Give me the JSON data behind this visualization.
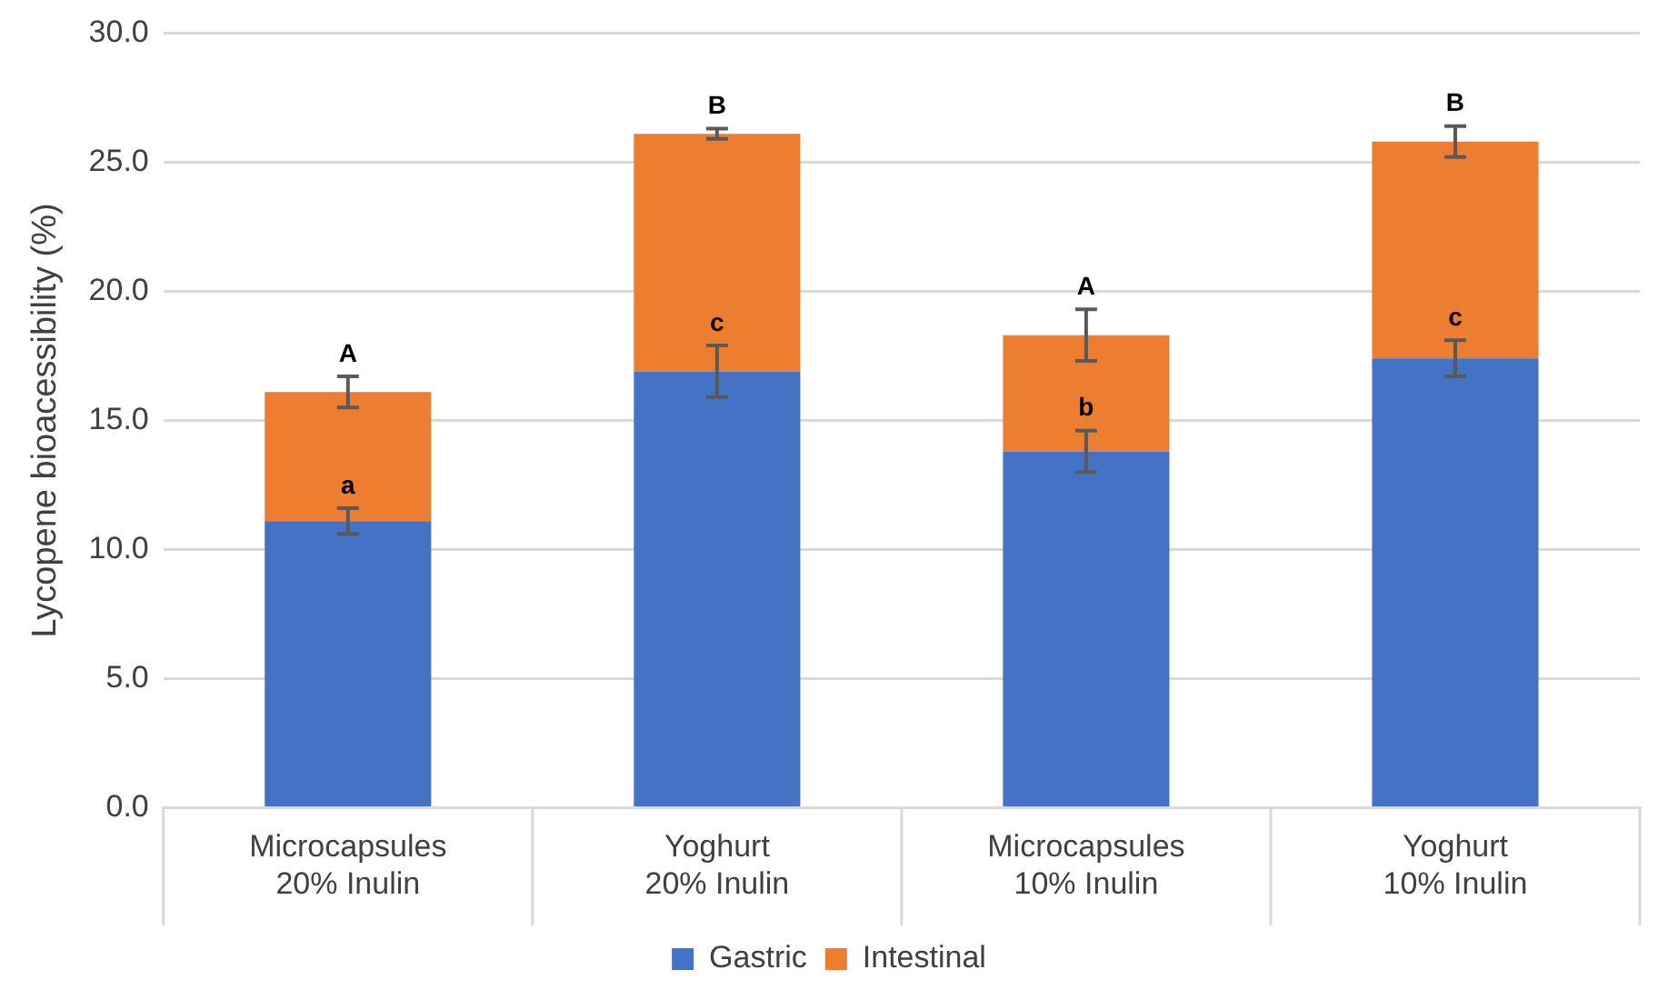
{
  "chart_data": {
    "type": "bar",
    "ylabel": "Lycopene bioacessibility (%)",
    "categories": [
      "Microcapsules\n20% Inulin",
      "Yoghurt\n20% Inulin",
      "Microcapsules\n10% Inulin",
      "Yoghurt\n10% Inulin"
    ],
    "stacked": true,
    "series": [
      {
        "name": "Gastric",
        "color": "#4472c4",
        "values": [
          11.1,
          16.9,
          13.8,
          17.4
        ],
        "errors": [
          0.5,
          1.0,
          0.8,
          0.7
        ]
      },
      {
        "name": "Intestinal",
        "color": "#ed7d31",
        "values": [
          5.0,
          9.2,
          4.5,
          8.4
        ],
        "errors": [
          0.6,
          0.2,
          1.0,
          0.6
        ]
      }
    ],
    "ylim": [
      0,
      30
    ],
    "yticks": [
      {
        "value": 0,
        "label": "0.0"
      },
      {
        "value": 5,
        "label": "5.0"
      },
      {
        "value": 10,
        "label": "10.0"
      },
      {
        "value": 15,
        "label": "15.0"
      },
      {
        "value": 20,
        "label": "20.0"
      },
      {
        "value": 25,
        "label": "25.0"
      },
      {
        "value": 30,
        "label": "30.0"
      }
    ],
    "grid": "y",
    "legend": "bottom",
    "annotations": [
      {
        "text": "a",
        "x": "Microcapsules\n20% Inulin",
        "y": 11.6
      },
      {
        "text": "A",
        "x": "Microcapsules\n20% Inulin",
        "y": 16.7
      },
      {
        "text": "c",
        "x": "Yoghurt\n20% Inulin",
        "y": 17.9
      },
      {
        "text": "B",
        "x": "Yoghurt\n20% Inulin",
        "y": 26.3
      },
      {
        "text": "b",
        "x": "Microcapsules\n10% Inulin",
        "y": 14.6
      },
      {
        "text": "A",
        "x": "Microcapsules\n10% Inulin",
        "y": 19.3
      },
      {
        "text": "c",
        "x": "Yoghurt\n10% Inulin",
        "y": 18.1
      },
      {
        "text": "B",
        "x": "Yoghurt\n10% Inulin",
        "y": 26.4
      }
    ]
  }
}
